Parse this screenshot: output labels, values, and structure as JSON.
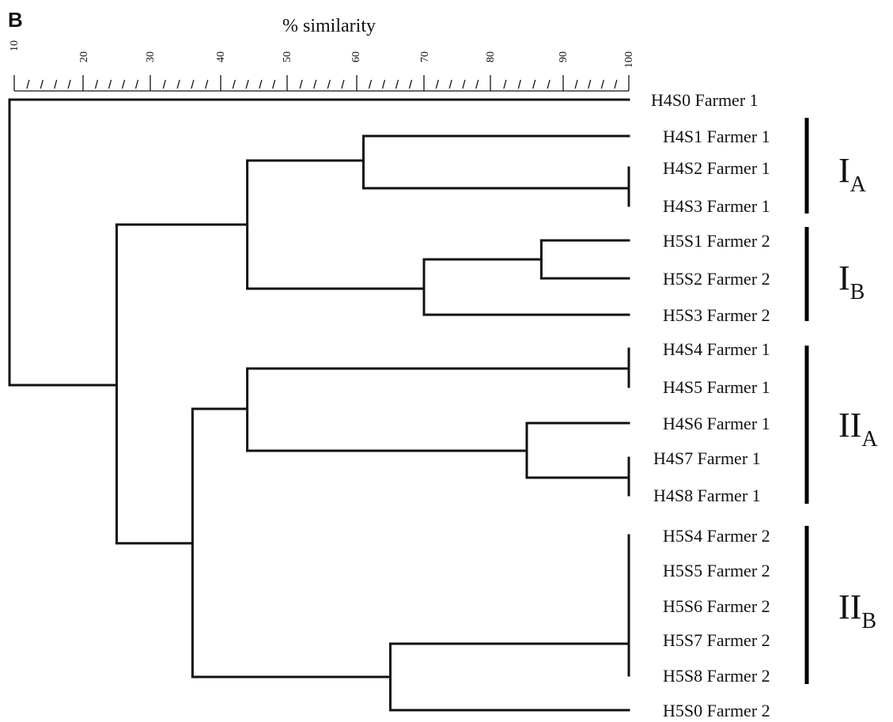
{
  "panel_label": "B",
  "axis": {
    "title": "% similarity",
    "tick_labels": [
      "10",
      "20",
      "30",
      "40",
      "50",
      "60",
      "70",
      "80",
      "90",
      "100"
    ]
  },
  "leaves": [
    "H4S0 Farmer 1",
    "H4S1 Farmer 1",
    "H4S2 Farmer 1",
    "H4S3 Farmer 1",
    "H5S1 Farmer 2",
    "H5S2 Farmer 2",
    "H5S3 Farmer 2",
    "H4S4 Farmer 1",
    "H4S5 Farmer 1",
    "H4S6 Farmer 1",
    "H4S7 Farmer 1",
    "H4S8 Farmer 1",
    "H5S4 Farmer 2",
    "H5S5 Farmer 2",
    "H5S6 Farmer 2",
    "H5S7 Farmer 2",
    "H5S8 Farmer 2",
    "H5S0 Farmer 2"
  ],
  "groups": [
    {
      "main": "I",
      "sub": "A"
    },
    {
      "main": "I",
      "sub": "B"
    },
    {
      "main": "II",
      "sub": "A"
    },
    {
      "main": "II",
      "sub": "B"
    }
  ],
  "clusters": {
    "merges": [
      {
        "members": [
          "H4S2 Farmer 1",
          "H4S3 Farmer 1"
        ],
        "similarity": 100
      },
      {
        "members": [
          "H4S4 Farmer 1",
          "H4S5 Farmer 1"
        ],
        "similarity": 100
      },
      {
        "members": [
          "H4S7 Farmer 1",
          "H4S8 Farmer 1"
        ],
        "similarity": 100
      },
      {
        "members": [
          "H5S4 Farmer 2",
          "H5S5 Farmer 2",
          "H5S6 Farmer 2",
          "H5S7 Farmer 2",
          "H5S8 Farmer 2"
        ],
        "similarity": 100
      },
      {
        "members": [
          "H5S1 Farmer 2",
          "H5S2 Farmer 2"
        ],
        "similarity": 87
      },
      {
        "members": [
          "H4S6 Farmer 1",
          "H4S7 Farmer 1",
          "H4S8 Farmer 1"
        ],
        "similarity": 85
      },
      {
        "members": [
          "H5S1 Farmer 2",
          "H5S2 Farmer 2",
          "H5S3 Farmer 2"
        ],
        "similarity": 70
      },
      {
        "members": [
          "H5S4 Farmer 2",
          "H5S5 Farmer 2",
          "H5S6 Farmer 2",
          "H5S7 Farmer 2",
          "H5S8 Farmer 2",
          "H5S0 Farmer 2"
        ],
        "similarity": 65
      },
      {
        "members": [
          "H4S1 Farmer 1",
          "H4S2 Farmer 1",
          "H4S3 Farmer 1"
        ],
        "similarity": 61
      },
      {
        "members": [
          "I_A",
          "I_B"
        ],
        "similarity": 44
      },
      {
        "members": [
          "H4S4 Farmer 1",
          "H4S5 Farmer 1",
          "H4S6 Farmer 1",
          "H4S7 Farmer 1",
          "H4S8 Farmer 1"
        ],
        "similarity": 44
      },
      {
        "members": [
          "II_A",
          "II_B"
        ],
        "similarity": 36
      },
      {
        "members": [
          "I",
          "II"
        ],
        "similarity": 25
      },
      {
        "members": [
          "H4S0 Farmer 1",
          "all others"
        ],
        "similarity": 10
      }
    ]
  }
}
